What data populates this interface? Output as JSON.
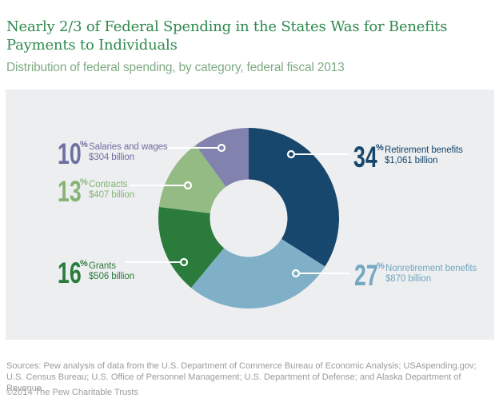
{
  "header": {
    "title": "Nearly 2/3 of Federal Spending in the States Was for Benefits Payments to Individuals",
    "subtitle": "Distribution of federal spending, by category, federal fiscal 2013"
  },
  "chart_data": {
    "type": "pie",
    "subtype": "donut",
    "title": "Distribution of federal spending, by category, federal fiscal 2013",
    "direction": "clockwise",
    "start_angle_deg": 0,
    "legend_position": "callout-labels",
    "percent_sign": "%",
    "background_color": "#edeef0",
    "categories": [
      "Retirement benefits",
      "Nonretirement benefits",
      "Grants",
      "Contracts",
      "Salaries and wages"
    ],
    "values": [
      34,
      27,
      16,
      13,
      10
    ],
    "segments": [
      {
        "label": "Retirement benefits",
        "percent": 34,
        "amount": "$1,061 billion",
        "color": "#17476d",
        "label_color": "#17476d"
      },
      {
        "label": "Nonretirement benefits",
        "percent": 27,
        "amount": "$870 billion",
        "color": "#7fb0c7",
        "label_color": "#74a7c2"
      },
      {
        "label": "Grants",
        "percent": 16,
        "amount": "$506 billion",
        "color": "#2b7c3c",
        "label_color": "#2b7c3c"
      },
      {
        "label": "Contracts",
        "percent": 13,
        "amount": "$407 billion",
        "color": "#95bb85",
        "label_color": "#87b476"
      },
      {
        "label": "Salaries and wages",
        "percent": 10,
        "amount": "$304 billion",
        "color": "#8182ae",
        "label_color": "#6d70a1"
      }
    ]
  },
  "footer": {
    "sources": "Sources: Pew analysis of data from the U.S. Department of Commerce Bureau of Economic Analysis; USAspending.gov; U.S. Census Bureau; U.S. Office of Personnel Management; U.S. Department of Defense; and Alaska Department of Revenue",
    "copyright": "©2014 The Pew Charitable Trusts"
  }
}
